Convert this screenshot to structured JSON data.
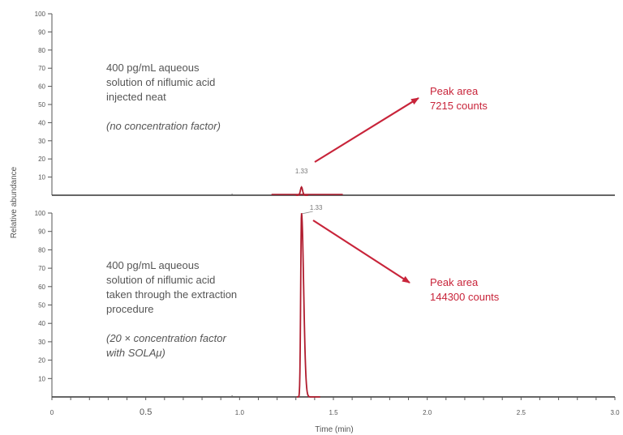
{
  "chart_data": {
    "type": "line",
    "xlabel": "Time (min)",
    "ylabel": "Relative abundance",
    "xlim": [
      0,
      3.0
    ],
    "x_ticks": [
      "0",
      "0.5",
      "1.0",
      "1.5",
      "2.0",
      "2.5",
      "3.0"
    ],
    "x_tick_values": [
      0,
      0.5,
      1.0,
      1.5,
      2.0,
      2.5,
      3.0
    ],
    "colors": {
      "baseline": "#333333",
      "signal": "#b01c2e",
      "annotation": "#c8243a",
      "text": "#555555"
    },
    "panels": [
      {
        "ylim": [
          0,
          100
        ],
        "y_ticks": [
          "10",
          "20",
          "30",
          "40",
          "50",
          "60",
          "70",
          "80",
          "90",
          "100"
        ],
        "y_tick_values": [
          10,
          20,
          30,
          40,
          50,
          60,
          70,
          80,
          90,
          100
        ],
        "description_lines": [
          "400 pg/mL aqueous",
          "solution of niflumic acid",
          "injected neat"
        ],
        "note": "(no concentration factor)",
        "peak": {
          "rt": 1.33,
          "rt_label": "1.33",
          "height": 4.5
        },
        "annotation": {
          "line1": "Peak area",
          "line2": "7215 counts"
        }
      },
      {
        "ylim": [
          0,
          100
        ],
        "y_ticks": [
          "10",
          "20",
          "30",
          "40",
          "50",
          "60",
          "70",
          "80",
          "90",
          "100"
        ],
        "y_tick_values": [
          10,
          20,
          30,
          40,
          50,
          60,
          70,
          80,
          90,
          100
        ],
        "description_lines": [
          "400 pg/mL aqueous",
          "solution of niflumic acid",
          "taken through the extraction",
          "procedure"
        ],
        "note_lines": [
          "(20 × concentration factor",
          "with SOLAμ)"
        ],
        "peak": {
          "rt": 1.33,
          "rt_label": "1.33",
          "height": 100
        },
        "annotation": {
          "line1": "Peak area",
          "line2": "144300 counts"
        }
      }
    ]
  }
}
